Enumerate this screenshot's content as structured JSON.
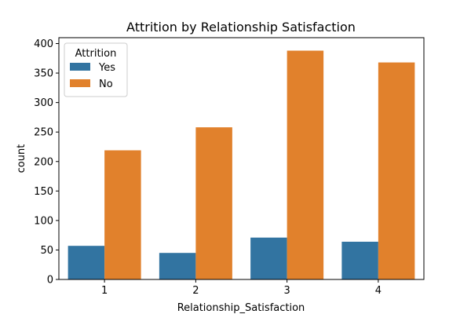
{
  "chart_data": {
    "type": "bar",
    "title": "Attrition by Relationship Satisfaction",
    "xlabel": "Relationship_Satisfaction",
    "ylabel": "count",
    "categories": [
      "1",
      "2",
      "3",
      "4"
    ],
    "series": [
      {
        "name": "Yes",
        "values": [
          57,
          45,
          71,
          64
        ],
        "color": "#3274a1"
      },
      {
        "name": "No",
        "values": [
          219,
          258,
          388,
          368
        ],
        "color": "#e1812c"
      }
    ],
    "ylim": [
      0,
      410
    ],
    "yticks": [
      0,
      50,
      100,
      150,
      200,
      250,
      300,
      350,
      400
    ],
    "legend": {
      "title": "Attrition",
      "placement": "top-left"
    },
    "grid": false
  }
}
